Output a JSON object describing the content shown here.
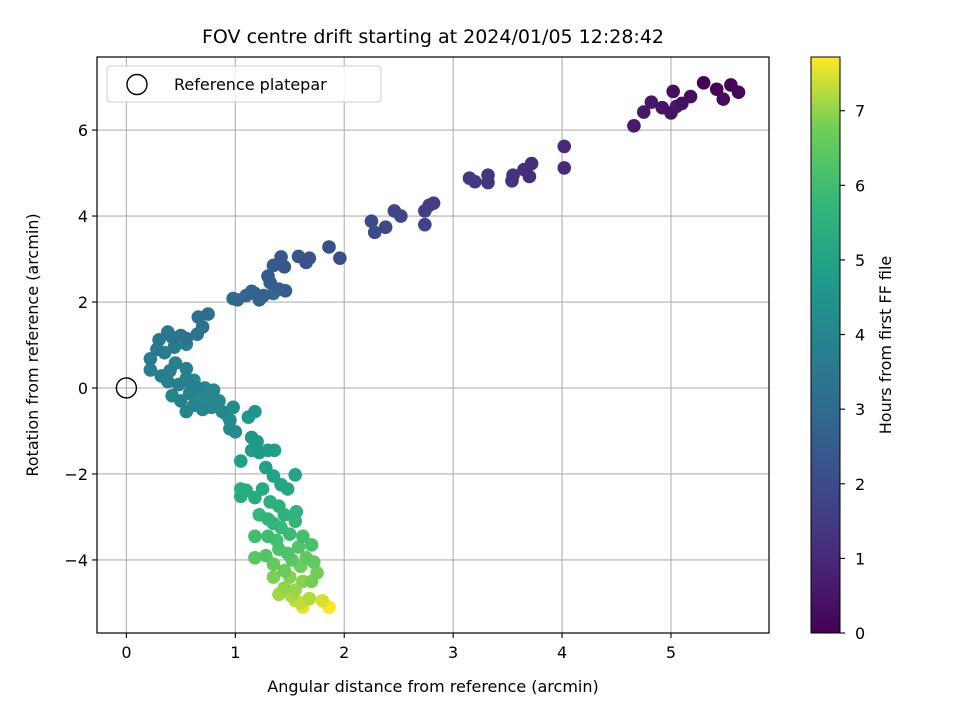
{
  "chart_data": {
    "type": "scatter",
    "title": "FOV centre drift starting at 2024/01/05 12:28:42",
    "xlabel": "Angular distance from reference (arcmin)",
    "ylabel": "Rotation from reference (arcmin)",
    "xlim": [
      -0.27,
      5.9
    ],
    "ylim": [
      -5.7,
      7.7
    ],
    "x_ticks": [
      0,
      1,
      2,
      3,
      4,
      5
    ],
    "y_ticks": [
      -4,
      -2,
      0,
      2,
      4,
      6
    ],
    "grid": true,
    "colormap": "viridis",
    "colorbar": {
      "label": "Hours from first FF file",
      "range": [
        0,
        7.72
      ],
      "ticks": [
        0,
        1,
        2,
        3,
        4,
        5,
        6,
        7
      ]
    },
    "legend": {
      "position": "top-left",
      "entries": [
        {
          "label": "Reference platepar",
          "marker": "open-circle"
        }
      ]
    },
    "reference_point": {
      "x": 0,
      "y": 0
    },
    "points": [
      {
        "x": 5.3,
        "y": 7.1,
        "c": 0.05
      },
      {
        "x": 5.42,
        "y": 6.95,
        "c": 0.1
      },
      {
        "x": 5.55,
        "y": 7.05,
        "c": 0.15
      },
      {
        "x": 5.62,
        "y": 6.88,
        "c": 0.2
      },
      {
        "x": 5.48,
        "y": 6.72,
        "c": 0.25
      },
      {
        "x": 5.18,
        "y": 6.78,
        "c": 0.3
      },
      {
        "x": 5.02,
        "y": 6.9,
        "c": 0.35
      },
      {
        "x": 5.1,
        "y": 6.62,
        "c": 0.4
      },
      {
        "x": 5.0,
        "y": 6.4,
        "c": 0.45
      },
      {
        "x": 4.92,
        "y": 6.52,
        "c": 0.5
      },
      {
        "x": 4.82,
        "y": 6.65,
        "c": 0.55
      },
      {
        "x": 4.75,
        "y": 6.42,
        "c": 0.6
      },
      {
        "x": 4.66,
        "y": 6.1,
        "c": 0.65
      },
      {
        "x": 5.05,
        "y": 6.55,
        "c": 0.7
      },
      {
        "x": 4.02,
        "y": 5.62,
        "c": 1.0
      },
      {
        "x": 4.02,
        "y": 5.12,
        "c": 1.05
      },
      {
        "x": 3.72,
        "y": 5.22,
        "c": 1.1
      },
      {
        "x": 3.7,
        "y": 4.92,
        "c": 1.15
      },
      {
        "x": 3.65,
        "y": 5.08,
        "c": 1.2
      },
      {
        "x": 3.55,
        "y": 4.95,
        "c": 1.25
      },
      {
        "x": 3.54,
        "y": 4.82,
        "c": 1.3
      },
      {
        "x": 3.32,
        "y": 4.95,
        "c": 1.35
      },
      {
        "x": 3.32,
        "y": 4.78,
        "c": 1.4
      },
      {
        "x": 3.2,
        "y": 4.8,
        "c": 1.45
      },
      {
        "x": 3.15,
        "y": 4.88,
        "c": 1.5
      },
      {
        "x": 2.82,
        "y": 4.3,
        "c": 1.6
      },
      {
        "x": 2.78,
        "y": 4.25,
        "c": 1.65
      },
      {
        "x": 2.74,
        "y": 4.12,
        "c": 1.7
      },
      {
        "x": 2.74,
        "y": 3.8,
        "c": 1.75
      },
      {
        "x": 2.52,
        "y": 4.0,
        "c": 1.8
      },
      {
        "x": 2.46,
        "y": 4.12,
        "c": 1.85
      },
      {
        "x": 2.38,
        "y": 3.74,
        "c": 1.9
      },
      {
        "x": 2.28,
        "y": 3.62,
        "c": 1.95
      },
      {
        "x": 2.25,
        "y": 3.88,
        "c": 2.0
      },
      {
        "x": 1.96,
        "y": 3.02,
        "c": 2.1
      },
      {
        "x": 1.86,
        "y": 3.28,
        "c": 2.15
      },
      {
        "x": 1.68,
        "y": 3.02,
        "c": 2.2
      },
      {
        "x": 1.65,
        "y": 2.92,
        "c": 2.25
      },
      {
        "x": 1.58,
        "y": 3.06,
        "c": 2.3
      },
      {
        "x": 1.45,
        "y": 2.82,
        "c": 2.35
      },
      {
        "x": 1.42,
        "y": 3.05,
        "c": 2.4
      },
      {
        "x": 1.35,
        "y": 2.85,
        "c": 2.45
      },
      {
        "x": 1.3,
        "y": 2.6,
        "c": 2.5
      },
      {
        "x": 1.46,
        "y": 2.26,
        "c": 2.55
      },
      {
        "x": 1.4,
        "y": 2.3,
        "c": 2.6
      },
      {
        "x": 1.32,
        "y": 2.45,
        "c": 2.65
      },
      {
        "x": 1.26,
        "y": 2.15,
        "c": 2.7
      },
      {
        "x": 1.22,
        "y": 2.05,
        "c": 2.75
      },
      {
        "x": 1.15,
        "y": 2.25,
        "c": 2.8
      },
      {
        "x": 1.1,
        "y": 2.15,
        "c": 2.85
      },
      {
        "x": 1.02,
        "y": 2.05,
        "c": 2.9
      },
      {
        "x": 0.98,
        "y": 2.08,
        "c": 2.95
      },
      {
        "x": 1.18,
        "y": 2.2,
        "c": 3.0
      },
      {
        "x": 1.35,
        "y": 2.2,
        "c": 3.05
      },
      {
        "x": 0.75,
        "y": 1.72,
        "c": 3.1
      },
      {
        "x": 0.66,
        "y": 1.65,
        "c": 3.15
      },
      {
        "x": 0.7,
        "y": 1.42,
        "c": 3.2
      },
      {
        "x": 0.65,
        "y": 1.25,
        "c": 3.25
      },
      {
        "x": 0.55,
        "y": 1.15,
        "c": 3.3
      },
      {
        "x": 0.5,
        "y": 1.22,
        "c": 3.35
      },
      {
        "x": 0.42,
        "y": 1.18,
        "c": 3.4
      },
      {
        "x": 0.38,
        "y": 1.3,
        "c": 3.45
      },
      {
        "x": 0.3,
        "y": 1.12,
        "c": 3.5
      },
      {
        "x": 0.28,
        "y": 0.9,
        "c": 3.55
      },
      {
        "x": 0.22,
        "y": 0.68,
        "c": 3.6
      },
      {
        "x": 0.35,
        "y": 0.82,
        "c": 3.62
      },
      {
        "x": 0.44,
        "y": 0.95,
        "c": 3.64
      },
      {
        "x": 0.55,
        "y": 1.02,
        "c": 3.66
      },
      {
        "x": 0.45,
        "y": 0.58,
        "c": 3.68
      },
      {
        "x": 0.55,
        "y": 0.45,
        "c": 3.7
      },
      {
        "x": 0.4,
        "y": 0.4,
        "c": 3.72
      },
      {
        "x": 0.32,
        "y": 0.28,
        "c": 3.74
      },
      {
        "x": 0.22,
        "y": 0.42,
        "c": 3.76
      },
      {
        "x": 0.38,
        "y": 0.15,
        "c": 3.78
      },
      {
        "x": 0.48,
        "y": 0.08,
        "c": 3.8
      },
      {
        "x": 0.55,
        "y": 0.22,
        "c": 3.82
      },
      {
        "x": 0.6,
        "y": 0.05,
        "c": 3.84
      },
      {
        "x": 0.66,
        "y": -0.02,
        "c": 3.86
      },
      {
        "x": 0.42,
        "y": -0.18,
        "c": 3.88
      },
      {
        "x": 0.5,
        "y": -0.3,
        "c": 3.9
      },
      {
        "x": 0.58,
        "y": -0.12,
        "c": 3.92
      },
      {
        "x": 0.62,
        "y": -0.4,
        "c": 3.94
      },
      {
        "x": 0.55,
        "y": -0.55,
        "c": 3.96
      },
      {
        "x": 0.7,
        "y": -0.5,
        "c": 3.98
      },
      {
        "x": 0.75,
        "y": -0.25,
        "c": 4.0
      },
      {
        "x": 0.8,
        "y": -0.05,
        "c": 4.02
      },
      {
        "x": 0.85,
        "y": -0.3,
        "c": 4.04
      },
      {
        "x": 0.72,
        "y": 0.0,
        "c": 4.06
      },
      {
        "x": 0.78,
        "y": -0.45,
        "c": 4.08
      },
      {
        "x": 0.88,
        "y": -0.55,
        "c": 4.1
      },
      {
        "x": 0.92,
        "y": -0.62,
        "c": 4.12
      },
      {
        "x": 0.95,
        "y": -0.75,
        "c": 4.14
      },
      {
        "x": 0.98,
        "y": -0.45,
        "c": 4.16
      },
      {
        "x": 0.95,
        "y": -0.95,
        "c": 4.18
      },
      {
        "x": 1.0,
        "y": -1.02,
        "c": 4.2
      },
      {
        "x": 0.62,
        "y": 0.18,
        "c": 4.22
      },
      {
        "x": 0.68,
        "y": -0.2,
        "c": 4.24
      },
      {
        "x": 1.18,
        "y": -0.55,
        "c": 4.5
      },
      {
        "x": 1.12,
        "y": -0.68,
        "c": 4.55
      },
      {
        "x": 1.15,
        "y": -1.15,
        "c": 4.6
      },
      {
        "x": 1.2,
        "y": -1.25,
        "c": 4.65
      },
      {
        "x": 1.22,
        "y": -1.5,
        "c": 4.7
      },
      {
        "x": 1.15,
        "y": -1.45,
        "c": 4.75
      },
      {
        "x": 1.3,
        "y": -1.45,
        "c": 4.8
      },
      {
        "x": 1.36,
        "y": -1.45,
        "c": 4.85
      },
      {
        "x": 1.05,
        "y": -1.7,
        "c": 4.9
      },
      {
        "x": 1.28,
        "y": -1.85,
        "c": 4.95
      },
      {
        "x": 1.35,
        "y": -2.05,
        "c": 5.0
      },
      {
        "x": 1.55,
        "y": -2.02,
        "c": 5.05
      },
      {
        "x": 1.42,
        "y": -2.25,
        "c": 5.1
      },
      {
        "x": 1.48,
        "y": -2.35,
        "c": 5.15
      },
      {
        "x": 1.25,
        "y": -2.35,
        "c": 5.2
      },
      {
        "x": 1.18,
        "y": -2.55,
        "c": 5.25
      },
      {
        "x": 1.05,
        "y": -2.35,
        "c": 5.3
      },
      {
        "x": 1.05,
        "y": -2.52,
        "c": 5.35
      },
      {
        "x": 1.1,
        "y": -2.38,
        "c": 5.4
      },
      {
        "x": 1.32,
        "y": -2.65,
        "c": 5.45
      },
      {
        "x": 1.4,
        "y": -2.75,
        "c": 5.5
      },
      {
        "x": 1.56,
        "y": -2.88,
        "c": 5.55
      },
      {
        "x": 1.45,
        "y": -2.95,
        "c": 5.6
      },
      {
        "x": 1.3,
        "y": -3.05,
        "c": 5.65
      },
      {
        "x": 1.35,
        "y": -3.15,
        "c": 5.7
      },
      {
        "x": 1.55,
        "y": -3.1,
        "c": 5.75
      },
      {
        "x": 1.22,
        "y": -2.95,
        "c": 5.8
      },
      {
        "x": 1.42,
        "y": -3.25,
        "c": 5.85
      },
      {
        "x": 1.5,
        "y": -3.4,
        "c": 5.9
      },
      {
        "x": 1.3,
        "y": -3.45,
        "c": 5.95
      },
      {
        "x": 1.18,
        "y": -3.45,
        "c": 6.0
      },
      {
        "x": 1.38,
        "y": -3.55,
        "c": 6.05
      },
      {
        "x": 1.62,
        "y": -3.45,
        "c": 6.1
      },
      {
        "x": 1.7,
        "y": -3.65,
        "c": 6.15
      },
      {
        "x": 1.4,
        "y": -3.75,
        "c": 6.2
      },
      {
        "x": 1.48,
        "y": -3.85,
        "c": 6.25
      },
      {
        "x": 1.58,
        "y": -3.7,
        "c": 6.3
      },
      {
        "x": 1.28,
        "y": -3.9,
        "c": 6.35
      },
      {
        "x": 1.18,
        "y": -3.95,
        "c": 6.4
      },
      {
        "x": 1.52,
        "y": -4.0,
        "c": 6.45
      },
      {
        "x": 1.65,
        "y": -3.95,
        "c": 6.5
      },
      {
        "x": 1.72,
        "y": -4.05,
        "c": 6.55
      },
      {
        "x": 1.35,
        "y": -4.1,
        "c": 6.6
      },
      {
        "x": 1.45,
        "y": -4.25,
        "c": 6.65
      },
      {
        "x": 1.6,
        "y": -4.15,
        "c": 6.7
      },
      {
        "x": 1.75,
        "y": -4.3,
        "c": 6.75
      },
      {
        "x": 1.7,
        "y": -4.5,
        "c": 6.8
      },
      {
        "x": 1.35,
        "y": -4.4,
        "c": 6.85
      },
      {
        "x": 1.5,
        "y": -4.4,
        "c": 6.9
      },
      {
        "x": 1.62,
        "y": -4.5,
        "c": 6.95
      },
      {
        "x": 1.45,
        "y": -4.65,
        "c": 7.0
      },
      {
        "x": 1.55,
        "y": -4.7,
        "c": 7.05
      },
      {
        "x": 1.4,
        "y": -4.8,
        "c": 7.1
      },
      {
        "x": 1.52,
        "y": -4.85,
        "c": 7.15
      },
      {
        "x": 1.68,
        "y": -4.9,
        "c": 7.2
      },
      {
        "x": 1.6,
        "y": -5.0,
        "c": 7.3
      },
      {
        "x": 1.55,
        "y": -4.95,
        "c": 7.35
      },
      {
        "x": 1.8,
        "y": -4.95,
        "c": 7.45
      },
      {
        "x": 1.62,
        "y": -5.1,
        "c": 7.55
      },
      {
        "x": 1.86,
        "y": -5.1,
        "c": 7.7
      }
    ]
  }
}
